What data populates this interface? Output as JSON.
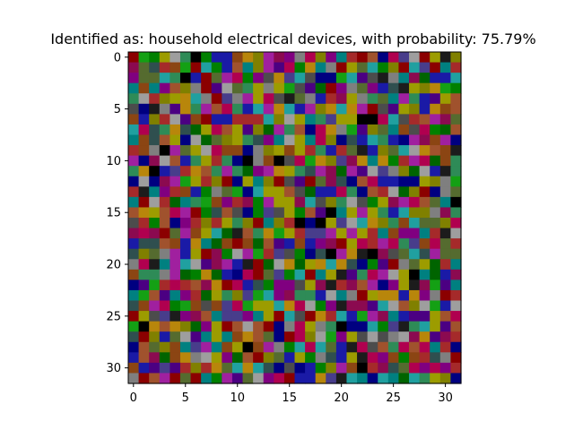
{
  "chart_data": {
    "type": "heatmap",
    "title": "Identified as: household electrical devices, with probability: 75.79%",
    "xlabel": "",
    "ylabel": "",
    "grid": false,
    "rows": 32,
    "cols": 32,
    "xlim": [
      -0.5,
      31.5
    ],
    "ylim": [
      31.5,
      -0.5
    ],
    "xticks": [
      0,
      5,
      10,
      15,
      20,
      25,
      30
    ],
    "yticks": [
      0,
      5,
      10,
      15,
      20,
      25,
      30
    ],
    "palette": [
      "#000000",
      "#1c1c1c",
      "#4c4c4c",
      "#7f7f7f",
      "#9e9e9e",
      "#000080",
      "#1a1aa6",
      "#4b0082",
      "#800080",
      "#a0209f",
      "#8b0a50",
      "#b0004f",
      "#8b0000",
      "#a52a2a",
      "#006400",
      "#008000",
      "#14a014",
      "#2e8b57",
      "#556b2f",
      "#808000",
      "#9c9c00",
      "#8b4513",
      "#a0522d",
      "#b8860b",
      "#008080",
      "#20a0a0",
      "#2f4f4f",
      "#483d8b",
      "#0000cd",
      "#228b22"
    ],
    "pixels": [
      "MonUcpAnGeVXTJKIDjrgwlkWdLzckUBr",
      "KSyltQkxPeuwrhfjnXYbMUqxnTkZzkYl",
      "ISqxRAGkSJLPgCvzxCFdoZHaBbwiOeGx",
      "wVYIurDkHcqRUDUQCfmkIbSgeyBUrXQn",
      "RElrUvxDMzDJsLaBSbGNiUbRqwJpGHsu",
      "CdBDfXRhWjRGxJXxGhTXxXhMaHsrGXtu",
      "VeTlcHVkGeNNNZrEUYpzsUAALZCNuhKq",
      "ZLyRXymsLuUfTOJpWFLvbQfrSwVaLnOu",
      "YtyWUdcmqrspyIwcsYLTdyexRGdhiVhd",
      "lVbAJqsEjVVdbTUtUlRelqBGTqZEXuVB",
      "hFKcWepsNRFAbVAajQXrzKvwXnlJjmtp",
      "RXAGzNXWRJpmgJvUpyJKmJHEzDrOcGBR",
      "dcFKJoUlTkFsYTMCHMqKyFWLeeFFsrbQ",
      "NBYIltGnbqodxUsuCmeGjpFuNEmTkdbS",
      "wkcNmwRoVglKPhUUixaTpcCnUKhjuSYA",
      "uXUuLhMPyWCFnzCUPWfAwshsRexTrDiR",
      "CNnWdINTlUprkwrNAFAszcZvTRVZqSrj",
      "ijKkqJVsZOBupvQUlzzJshslwtIgwNBE",
      "eyyutGXwOtMtOufGVeIiksjlhjpztjqN",
      "yrSbhGUkKPEJoNzanFyAhvBAiaqZyhSS",
      "bLBYJZEHiJeBMmcXmsvxvydnHkDqUOlw",
      "tRRbhmPvmGdjkSzPxkwsBHpLhcsAwOei",
      "FHoNjlWKvMLeyPIIaUiBlKWhdIUBiofw",
      "YoWHYgNOsRrzoxgKpRecYbMsvXevgDkN",
      "ytJjPotCtzLQUUxvjcPIBiifZEWrEQec",
      "MUazBgKuwzzIwsMxakXlZeohKYGffsWj",
      "oAXuvrmIUMucWkdDLsDpAdFxnzBpxsHW",
      "yMTeSEfYUYVvuSFMjrcoIUCcaDcKvHil",
      "duqrVYzJYtUAtJbnxLxqeBjaupLWLwNd",
      "GuKOVXbEUIOWkrqesnbyGUBjgVPVlyDk",
      "VGHzHlTlvqxvxydCdGnrJVANiyqLIjgN",
      "bMWJMqkwnhfqEIjkGeXzBxwdxYmZRUTd"
    ]
  }
}
